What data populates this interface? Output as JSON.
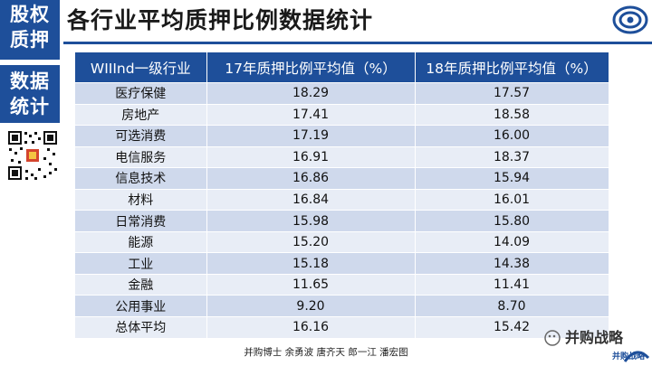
{
  "sidebar": {
    "top_tile": [
      "股权",
      "质押"
    ],
    "mid_tile": [
      "数据",
      "统计"
    ]
  },
  "header": {
    "title": "各行业平均质押比例数据统计"
  },
  "table": {
    "headers": [
      "WIIInd一级行业",
      "17年质押比例平均值（%）",
      "18年质押比例平均值（%）"
    ],
    "rows": [
      [
        "医疗保健",
        "18.29",
        "17.57"
      ],
      [
        "房地产",
        "17.41",
        "18.58"
      ],
      [
        "可选消费",
        "17.19",
        "16.00"
      ],
      [
        "电信服务",
        "16.91",
        "18.37"
      ],
      [
        "信息技术",
        "16.86",
        "15.94"
      ],
      [
        "材料",
        "16.84",
        "16.01"
      ],
      [
        "日常消费",
        "15.98",
        "15.80"
      ],
      [
        "能源",
        "15.20",
        "14.09"
      ],
      [
        "工业",
        "15.18",
        "14.38"
      ],
      [
        "金融",
        "11.65",
        "11.41"
      ],
      [
        "公用事业",
        "9.20",
        "8.70"
      ],
      [
        "总体平均",
        "16.16",
        "15.42"
      ]
    ]
  },
  "footer": {
    "credits": "并购博士 余勇波 唐齐天 郎一江 潘宏图"
  },
  "brand": {
    "watermark": "并购战略",
    "badge": "并购战略"
  },
  "colors": {
    "accent": "#1e4f9a",
    "row_dark": "#cfd9ec",
    "row_light": "#e8edf6"
  }
}
